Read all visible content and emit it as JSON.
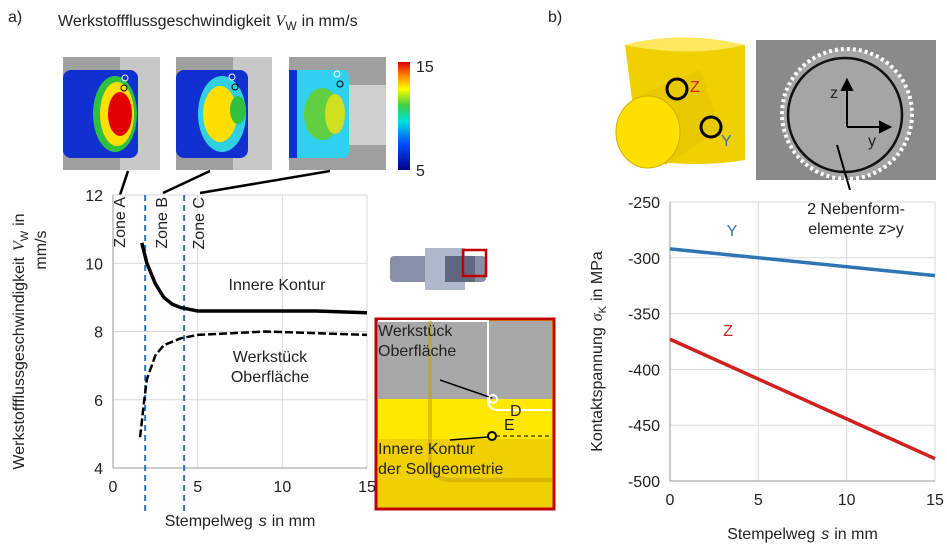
{
  "panel_labels": [
    "a)",
    "b)"
  ],
  "simulation": {
    "title": {
      "text": "Werkstoffflussgeschwindigkeit",
      "symbol": "V",
      "subscript": "W",
      "unit": "in mm/s"
    },
    "colorbar": {
      "max": 15,
      "min": 5
    }
  },
  "inset": {
    "workpiece_lines": [
      "Werkstück",
      "Oberfläche"
    ],
    "point_d": "D",
    "point_e": "E",
    "contour_lines": [
      "Innere Kontur",
      "der Sollgeometrie"
    ]
  },
  "photo": {
    "marker_z": "Z",
    "marker_y": "Y",
    "axis_z": "z",
    "axis_y": "y"
  },
  "chart_data": [
    {
      "type": "line",
      "y_label": {
        "text": "Werkstoffflussgeschwindigkeit",
        "symbol": "V",
        "subscript": "W",
        "unit_line1": "in",
        "unit_line2": "mm/s"
      },
      "x_label": {
        "text": "Stempelweg",
        "symbol": "s",
        "unit": "in mm"
      },
      "xlim": [
        0,
        15
      ],
      "xticks": [
        0,
        5,
        10,
        15
      ],
      "ylim": [
        4,
        12
      ],
      "yticks": [
        4,
        6,
        8,
        10,
        12
      ],
      "grid": true,
      "zones": {
        "labels": [
          "Zone A",
          "Zone B",
          "Zone C"
        ],
        "boundaries": [
          1.9,
          4.2
        ],
        "color": "#2e75b6"
      },
      "series": [
        {
          "name": "Innere Kontur",
          "color": "#000000",
          "dashed": false,
          "x": [
            1.7,
            2,
            2.5,
            3,
            3.5,
            4,
            4.5,
            5,
            6,
            8,
            10,
            12,
            15
          ],
          "values": [
            10.6,
            10.0,
            9.4,
            9.0,
            8.8,
            8.7,
            8.65,
            8.6,
            8.6,
            8.6,
            8.6,
            8.6,
            8.55
          ]
        },
        {
          "name": "Werkstück Oberfläche",
          "color": "#000000",
          "dashed": true,
          "x": [
            1.6,
            1.8,
            2,
            2.5,
            3,
            4,
            5,
            7,
            9,
            12,
            15
          ],
          "values": [
            4.9,
            5.8,
            6.6,
            7.3,
            7.6,
            7.8,
            7.9,
            7.95,
            8.0,
            7.95,
            7.9
          ]
        }
      ]
    },
    {
      "type": "line",
      "y_label": {
        "text": "Kontaktspannung",
        "symbol": "σ",
        "subscript": "K",
        "unit": "in MPa"
      },
      "x_label": {
        "text": "Stempelweg",
        "symbol": "s",
        "unit": "in mm"
      },
      "xlim": [
        0,
        15
      ],
      "xticks": [
        0,
        5,
        10,
        15
      ],
      "ylim": [
        -500,
        -250
      ],
      "yticks": [
        -500,
        -450,
        -400,
        -350,
        -300,
        -250
      ],
      "grid": true,
      "x": [
        0,
        15
      ],
      "series": [
        {
          "name": "Y",
          "color": "#2e75b6",
          "values": [
            -292,
            -316
          ]
        },
        {
          "name": "Z",
          "color": "#d02020",
          "values": [
            -373,
            -480
          ]
        }
      ],
      "annotation_lines": [
        "2 Nebenform-",
        "elemente z>y"
      ]
    }
  ]
}
